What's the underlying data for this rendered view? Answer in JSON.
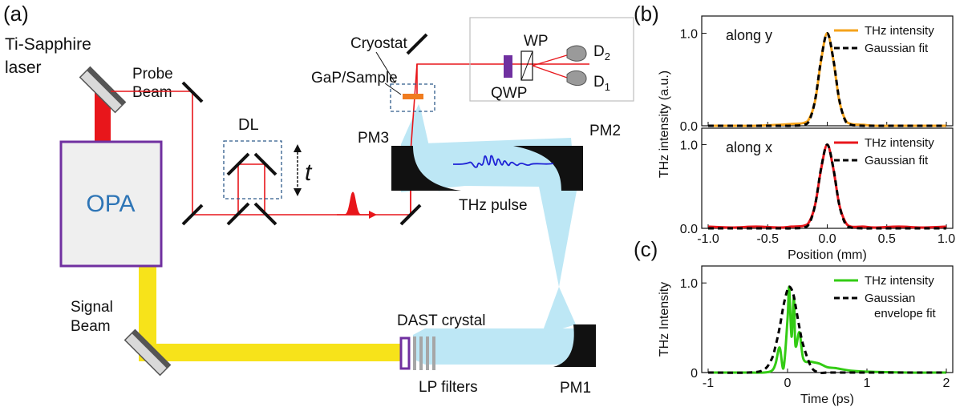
{
  "panels": {
    "a": "(a)",
    "b": "(b)",
    "c": "(c)"
  },
  "setup": {
    "laser_line1": "Ti-Sapphire",
    "laser_line2": "laser",
    "probe_line1": "Probe",
    "probe_line2": "Beam",
    "opa": "OPA",
    "signal_line1": "Signal",
    "signal_line2": "Beam",
    "dl": "DL",
    "delay": "t",
    "cryostat": "Cryostat",
    "gap_sample": "GaP/Sample",
    "wp": "WP",
    "qwp": "QWP",
    "d2_main": "D",
    "d2_sub": "2",
    "d1_main": "D",
    "d1_sub": "1",
    "pm1": "PM1",
    "pm2": "PM2",
    "pm3": "PM3",
    "thz_pulse": "THz pulse",
    "dast": "DAST crystal",
    "lp_filters": "LP filters"
  },
  "colors": {
    "laser_red": "#e8161b",
    "signal_yellow": "#f7e31a",
    "thz_blue": "#bde7f5",
    "opa_border": "#7030a0",
    "opa_fill": "#efefef",
    "opa_text": "#2e75b6",
    "sample_orange": "#f07c1f",
    "waveform_blue": "#1f23d6",
    "curve_orange": "#f5a31c",
    "curve_red": "#e8161b",
    "curve_green": "#33cc14",
    "fit_black": "#000000",
    "filter_gray": "#a6a6a6"
  },
  "chart_data": [
    {
      "type": "line",
      "panel": "b-top",
      "annotation": "along y",
      "x": [
        -1.0,
        -0.8,
        -0.6,
        -0.4,
        -0.3,
        -0.2,
        -0.15,
        -0.1,
        -0.05,
        0.0,
        0.05,
        0.1,
        0.15,
        0.2,
        0.3,
        0.4,
        0.6,
        0.8,
        1.0
      ],
      "series": [
        {
          "name": "THz intensity",
          "values": [
            0.0,
            0.0,
            0.0,
            0.01,
            0.02,
            0.03,
            0.08,
            0.28,
            0.72,
            1.0,
            0.72,
            0.28,
            0.07,
            0.02,
            0.01,
            0.0,
            0.0,
            0.0,
            0.0
          ]
        },
        {
          "name": "Gaussian fit",
          "values": [
            0.0,
            0.0,
            0.0,
            0.0,
            0.0,
            0.01,
            0.06,
            0.29,
            0.73,
            1.0,
            0.73,
            0.29,
            0.06,
            0.01,
            0.0,
            0.0,
            0.0,
            0.0,
            0.0
          ]
        }
      ],
      "ylabel": "THz intensity (a.u.)",
      "xlim": [
        -1.0,
        1.0
      ],
      "ylim": [
        0.0,
        1.1
      ],
      "yticks": [
        "0.0",
        "1.0"
      ],
      "legend": "top-right"
    },
    {
      "type": "line",
      "panel": "b-bottom",
      "annotation": "along x",
      "x": [
        -1.0,
        -0.8,
        -0.6,
        -0.4,
        -0.3,
        -0.2,
        -0.15,
        -0.1,
        -0.05,
        0.0,
        0.05,
        0.1,
        0.15,
        0.2,
        0.3,
        0.4,
        0.6,
        0.8,
        1.0
      ],
      "series": [
        {
          "name": "THz intensity",
          "values": [
            0.02,
            0.01,
            0.02,
            0.01,
            0.02,
            0.03,
            0.08,
            0.29,
            0.72,
            1.0,
            0.72,
            0.29,
            0.08,
            0.02,
            0.02,
            0.01,
            0.02,
            0.01,
            0.02
          ]
        },
        {
          "name": "Gaussian fit",
          "values": [
            0.0,
            0.0,
            0.0,
            0.0,
            0.0,
            0.01,
            0.06,
            0.29,
            0.73,
            1.0,
            0.73,
            0.29,
            0.06,
            0.01,
            0.0,
            0.0,
            0.0,
            0.0,
            0.0
          ]
        }
      ],
      "xlabel": "Position (mm)",
      "xticks": [
        "-1.0",
        "-0.5",
        "0.0",
        "0.5",
        "1.0"
      ],
      "xlim": [
        -1.0,
        1.0
      ],
      "ylim": [
        0.0,
        1.1
      ],
      "yticks": [
        "0.0",
        "1.0"
      ],
      "legend": "top-right"
    },
    {
      "type": "line",
      "panel": "c",
      "x": [
        -1.0,
        -0.5,
        -0.3,
        -0.2,
        -0.15,
        -0.1,
        -0.05,
        0.0,
        0.02,
        0.05,
        0.08,
        0.1,
        0.15,
        0.2,
        0.3,
        0.4,
        0.5,
        0.6,
        0.8,
        1.0,
        1.5,
        2.0
      ],
      "series": [
        {
          "name": "THz intensity",
          "values": [
            0.0,
            0.0,
            0.0,
            0.02,
            0.1,
            0.28,
            0.05,
            0.6,
            0.95,
            0.4,
            0.85,
            0.3,
            0.45,
            0.15,
            0.12,
            0.1,
            0.06,
            0.05,
            0.02,
            0.01,
            0.0,
            0.0
          ]
        },
        {
          "name": "Gaussian envelope fit",
          "values": [
            0.0,
            0.0,
            0.03,
            0.15,
            0.3,
            0.5,
            0.75,
            0.93,
            0.96,
            0.93,
            0.85,
            0.75,
            0.5,
            0.3,
            0.06,
            0.0,
            0.0,
            0.0,
            0.0,
            0.0,
            0.0,
            0.0
          ]
        }
      ],
      "xlabel": "Time (ps)",
      "ylabel": "THz Intensity",
      "legend_labels": [
        "THz intensity",
        "Gaussian",
        "envelope fit"
      ],
      "xticks": [
        "-1",
        "0",
        "1",
        "2"
      ],
      "xlim": [
        -1.0,
        2.0
      ],
      "ylim": [
        0.0,
        1.1
      ],
      "yticks": [
        "0",
        "1.0"
      ],
      "legend": "top-right"
    }
  ]
}
